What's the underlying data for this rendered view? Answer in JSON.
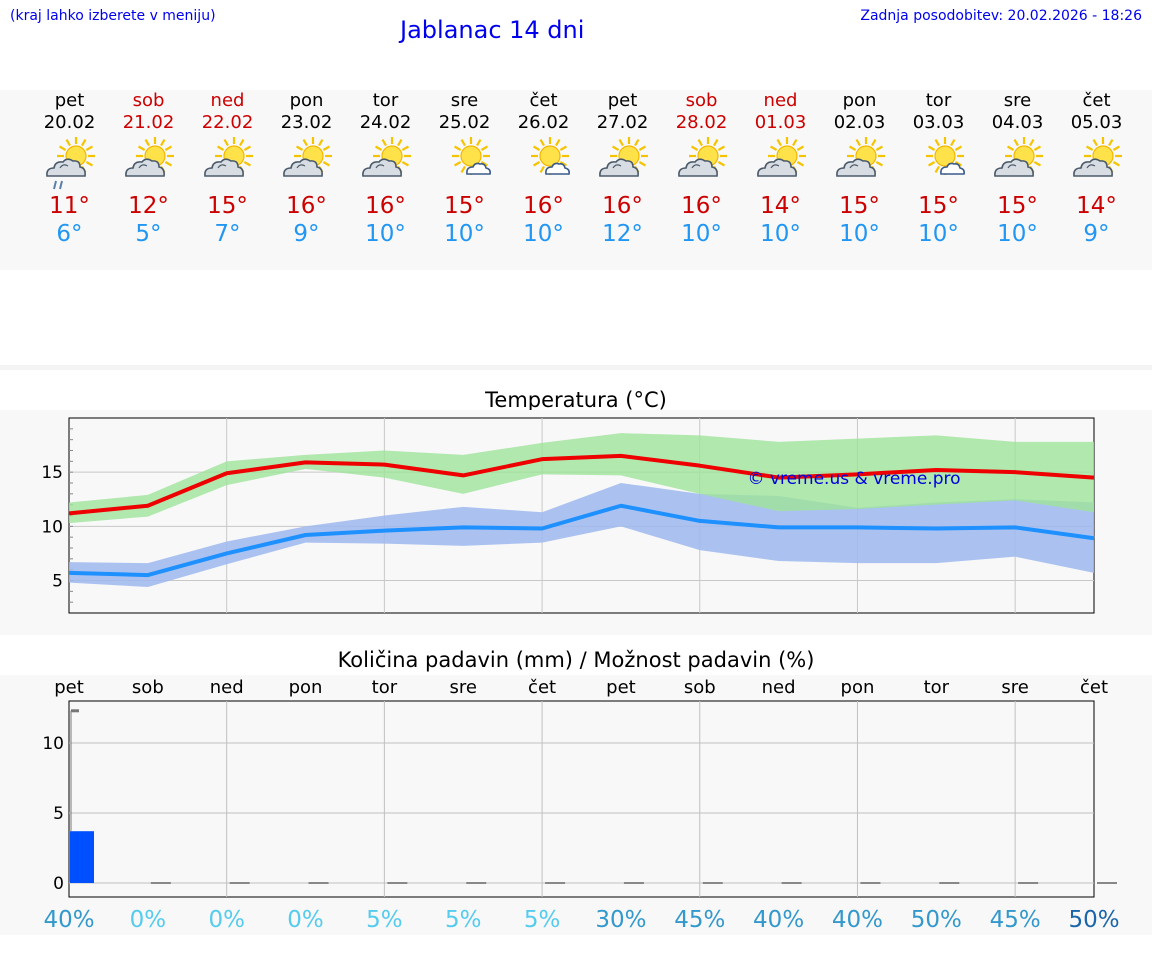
{
  "header": {
    "left_note": "(kraj lahko izberete v meniju)",
    "title": "Jablanac 14 dni",
    "updated": "Zadnja posodobitev: 20.02.2026 - 18:26"
  },
  "days": [
    {
      "name": "pet",
      "date": "20.02",
      "weekend": false,
      "icon": "sun-cloud-rain-icon",
      "tmax": "11°",
      "tmin": "6°"
    },
    {
      "name": "sob",
      "date": "21.02",
      "weekend": true,
      "icon": "sun-cloud-icon",
      "tmax": "12°",
      "tmin": "5°"
    },
    {
      "name": "ned",
      "date": "22.02",
      "weekend": true,
      "icon": "sun-cloud-icon",
      "tmax": "15°",
      "tmin": "7°"
    },
    {
      "name": "pon",
      "date": "23.02",
      "weekend": false,
      "icon": "sun-cloud-icon",
      "tmax": "16°",
      "tmin": "9°"
    },
    {
      "name": "tor",
      "date": "24.02",
      "weekend": false,
      "icon": "sun-cloud-icon",
      "tmax": "16°",
      "tmin": "10°"
    },
    {
      "name": "sre",
      "date": "25.02",
      "weekend": false,
      "icon": "sun-small-cloud-icon",
      "tmax": "15°",
      "tmin": "10°"
    },
    {
      "name": "čet",
      "date": "26.02",
      "weekend": false,
      "icon": "sun-small-cloud-icon",
      "tmax": "16°",
      "tmin": "10°"
    },
    {
      "name": "pet",
      "date": "27.02",
      "weekend": false,
      "icon": "sun-cloud-icon",
      "tmax": "16°",
      "tmin": "12°"
    },
    {
      "name": "sob",
      "date": "28.02",
      "weekend": true,
      "icon": "sun-cloud-icon",
      "tmax": "16°",
      "tmin": "10°"
    },
    {
      "name": "ned",
      "date": "01.03",
      "weekend": true,
      "icon": "sun-cloud-icon",
      "tmax": "14°",
      "tmin": "10°"
    },
    {
      "name": "pon",
      "date": "02.03",
      "weekend": false,
      "icon": "sun-cloud-icon",
      "tmax": "15°",
      "tmin": "10°"
    },
    {
      "name": "tor",
      "date": "03.03",
      "weekend": false,
      "icon": "sun-small-cloud-icon",
      "tmax": "15°",
      "tmin": "10°"
    },
    {
      "name": "sre",
      "date": "04.03",
      "weekend": false,
      "icon": "sun-cloud-icon",
      "tmax": "15°",
      "tmin": "10°"
    },
    {
      "name": "čet",
      "date": "05.03",
      "weekend": false,
      "icon": "sun-cloud-icon",
      "tmax": "14°",
      "tmin": "9°"
    }
  ],
  "colors": {
    "weekend": "#cc0000",
    "tmax": "#cc0000",
    "tmin": "#2196f3",
    "max_line": "#ee0000",
    "max_band": "#9de39a",
    "min_line": "#1e90ff",
    "min_band": "#9db8f0",
    "precip_bar": "#0050ff",
    "watermark": "#0000dd"
  },
  "chart_data": [
    {
      "type": "line",
      "title": "Temperatura (°C)",
      "x": [
        0,
        1,
        2,
        3,
        4,
        5,
        6,
        7,
        8,
        9,
        10,
        11,
        12,
        13
      ],
      "ylim": [
        2,
        20
      ],
      "yticks": [
        5,
        10,
        15
      ],
      "grid": true,
      "watermark": "© vreme.us & vreme.pro",
      "series": [
        {
          "name": "max",
          "values": [
            11.2,
            11.9,
            14.9,
            15.9,
            15.7,
            14.7,
            16.2,
            16.5,
            15.6,
            14.5,
            14.8,
            15.2,
            15.0,
            14.5
          ],
          "band_low": [
            10.3,
            10.9,
            13.8,
            15.3,
            14.5,
            13.0,
            14.8,
            14.7,
            13.0,
            11.4,
            11.6,
            12.0,
            12.4,
            11.3
          ],
          "band_high": [
            12.2,
            12.9,
            16.0,
            16.6,
            17.0,
            16.6,
            17.7,
            18.6,
            18.4,
            17.8,
            18.1,
            18.4,
            17.8,
            17.8
          ]
        },
        {
          "name": "min",
          "values": [
            5.7,
            5.5,
            7.5,
            9.2,
            9.6,
            9.9,
            9.8,
            11.9,
            10.5,
            9.9,
            9.9,
            9.8,
            9.9,
            8.9
          ],
          "band_low": [
            4.8,
            4.4,
            6.5,
            8.5,
            8.4,
            8.2,
            8.5,
            10.0,
            7.8,
            6.8,
            6.6,
            6.6,
            7.2,
            5.7
          ],
          "band_high": [
            6.7,
            6.6,
            8.6,
            10.0,
            11.0,
            11.8,
            11.3,
            14.0,
            13.0,
            12.8,
            11.7,
            12.2,
            12.5,
            12.2
          ]
        }
      ]
    },
    {
      "type": "bar",
      "title": "Količina padavin (mm) / Možnost padavin (%)",
      "categories": [
        "pet",
        "sob",
        "ned",
        "pon",
        "tor",
        "sre",
        "čet",
        "pet",
        "sob",
        "ned",
        "pon",
        "tor",
        "sre",
        "čet"
      ],
      "values": [
        3.7,
        0,
        0,
        0,
        0,
        0,
        0,
        0,
        0,
        0,
        0,
        0,
        0,
        0
      ],
      "max_marker": 12.3,
      "ylim": [
        -1,
        13
      ],
      "yticks": [
        0,
        5,
        10
      ],
      "grid": true,
      "probability": [
        "40%",
        "0%",
        "0%",
        "0%",
        "5%",
        "5%",
        "5%",
        "30%",
        "45%",
        "40%",
        "40%",
        "50%",
        "45%",
        "50%"
      ],
      "probability_colors": [
        "#3399cc",
        "#55ccee",
        "#55ccee",
        "#55ccee",
        "#55ccee",
        "#55ccee",
        "#55ccee",
        "#3399cc",
        "#3399cc",
        "#3399cc",
        "#3399cc",
        "#3399cc",
        "#3399cc",
        "#1a66aa"
      ]
    }
  ]
}
